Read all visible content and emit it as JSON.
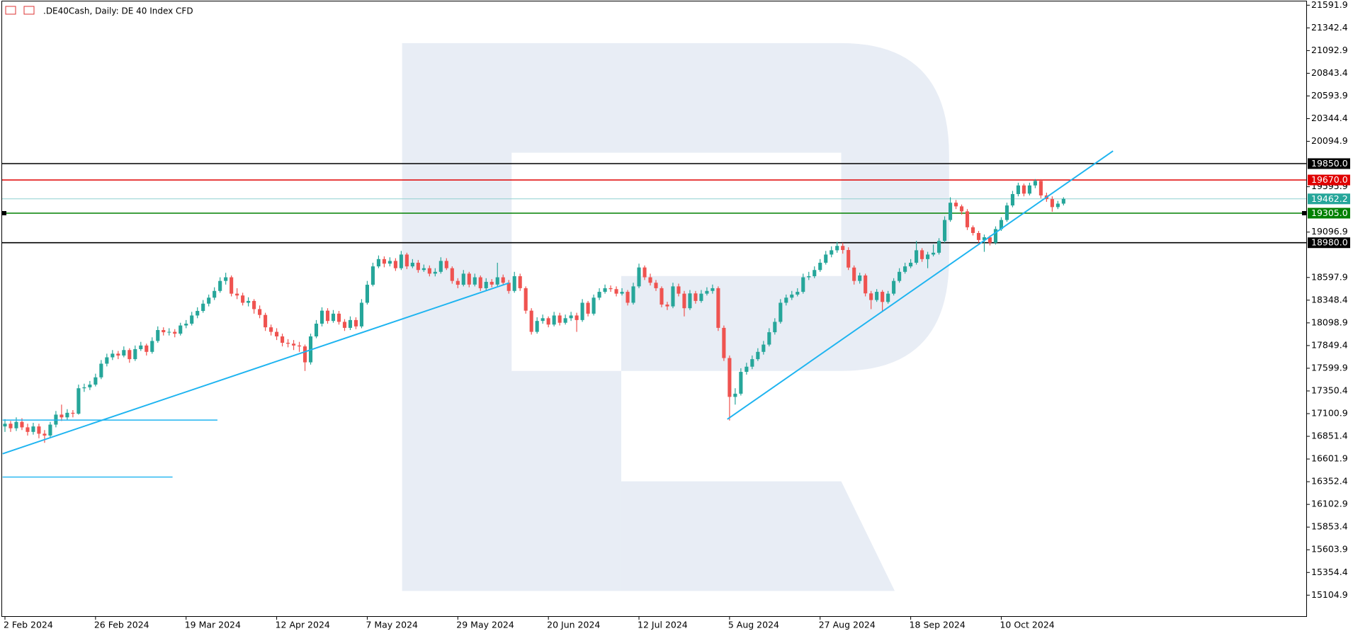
{
  "chart_data": {
    "type": "candlestick",
    "title": ".DE40Cash, Daily:  DE 40 Index CFD",
    "up_color": "#26a69a",
    "down_color": "#ef5350",
    "ylim": [
      14866,
      21649
    ],
    "xlim": [
      -0.5,
      230
    ],
    "yticks": [
      21591.9,
      21342.4,
      21092.9,
      20843.4,
      20593.9,
      20344.4,
      20094.9,
      19595.9,
      19096.9,
      18597.9,
      18348.4,
      18098.9,
      17849.4,
      17599.9,
      17350.4,
      17100.9,
      16851.4,
      16601.9,
      16352.4,
      16102.9,
      15853.4,
      15603.9,
      15354.4,
      15104.9
    ],
    "xticks": [
      {
        "value": 0,
        "label": "2 Feb 2024"
      },
      {
        "value": 16,
        "label": "26 Feb 2024"
      },
      {
        "value": 32,
        "label": "19 Mar 2024"
      },
      {
        "value": 48,
        "label": "12 Apr 2024"
      },
      {
        "value": 64,
        "label": "7 May 2024"
      },
      {
        "value": 80,
        "label": "29 May 2024"
      },
      {
        "value": 96,
        "label": "20 Jun 2024"
      },
      {
        "value": 112,
        "label": "12 Jul 2024"
      },
      {
        "value": 128,
        "label": "5 Aug 2024"
      },
      {
        "value": 144,
        "label": "27 Aug 2024"
      },
      {
        "value": 160,
        "label": "18 Sep 2024"
      },
      {
        "value": 176,
        "label": "10 Oct 2024"
      }
    ],
    "levels": [
      {
        "value": 19850,
        "label": "19850.0",
        "color": "#000000"
      },
      {
        "value": 19670,
        "label": "19670.0",
        "color": "#e00000"
      },
      {
        "value": 19462.2,
        "color": "#26a69a"
      },
      {
        "value": 19305,
        "label": "19305.0",
        "color": "#008000"
      },
      {
        "value": 18980,
        "label": "18980.0",
        "color": "#000000"
      }
    ],
    "candles": [
      [
        16960,
        17040,
        16900,
        16990
      ],
      [
        16990,
        17020,
        16900,
        16940
      ],
      [
        16940,
        17060,
        16910,
        17010
      ],
      [
        17010,
        17050,
        16920,
        16950
      ],
      [
        16950,
        16990,
        16860,
        16900
      ],
      [
        16900,
        17000,
        16870,
        16960
      ],
      [
        16960,
        16990,
        16830,
        16880
      ],
      [
        16880,
        16920,
        16780,
        16860
      ],
      [
        16860,
        17010,
        16840,
        16980
      ],
      [
        16980,
        17130,
        16950,
        17090
      ],
      [
        17090,
        17200,
        17020,
        17060
      ],
      [
        17060,
        17150,
        17030,
        17110
      ],
      [
        17110,
        17140,
        17060,
        17100
      ],
      [
        17100,
        17420,
        17090,
        17380
      ],
      [
        17380,
        17430,
        17340,
        17390
      ],
      [
        17390,
        17460,
        17360,
        17420
      ],
      [
        17420,
        17540,
        17400,
        17500
      ],
      [
        17500,
        17690,
        17480,
        17650
      ],
      [
        17650,
        17760,
        17620,
        17720
      ],
      [
        17720,
        17800,
        17690,
        17760
      ],
      [
        17760,
        17790,
        17700,
        17740
      ],
      [
        17740,
        17840,
        17720,
        17800
      ],
      [
        17800,
        17820,
        17660,
        17700
      ],
      [
        17700,
        17850,
        17680,
        17810
      ],
      [
        17810,
        17890,
        17790,
        17850
      ],
      [
        17850,
        17870,
        17740,
        17780
      ],
      [
        17780,
        17940,
        17760,
        17900
      ],
      [
        17900,
        18060,
        17880,
        18020
      ],
      [
        18020,
        18050,
        17960,
        17996
      ],
      [
        17996,
        18040,
        17960,
        18000
      ],
      [
        18000,
        18030,
        17940,
        17980
      ],
      [
        17980,
        18100,
        17960,
        18070
      ],
      [
        18070,
        18130,
        18040,
        18090
      ],
      [
        18090,
        18220,
        18070,
        18180
      ],
      [
        18180,
        18270,
        18150,
        18230
      ],
      [
        18230,
        18350,
        18210,
        18310
      ],
      [
        18310,
        18410,
        18280,
        18376
      ],
      [
        18376,
        18490,
        18350,
        18450
      ],
      [
        18450,
        18600,
        18430,
        18560
      ],
      [
        18560,
        18650,
        18520,
        18600
      ],
      [
        18600,
        18620,
        18390,
        18420
      ],
      [
        18420,
        18480,
        18360,
        18400
      ],
      [
        18400,
        18430,
        18290,
        18320
      ],
      [
        18320,
        18380,
        18280,
        18340
      ],
      [
        18340,
        18360,
        18200,
        18250
      ],
      [
        18250,
        18290,
        18150,
        18186
      ],
      [
        18186,
        18210,
        18010,
        18050
      ],
      [
        18050,
        18080,
        17960,
        18000
      ],
      [
        18000,
        18040,
        17910,
        17950
      ],
      [
        17950,
        17980,
        17840,
        17880
      ],
      [
        17880,
        17920,
        17830,
        17870
      ],
      [
        17870,
        17910,
        17800,
        17850
      ],
      [
        17850,
        17890,
        17780,
        17840
      ],
      [
        17840,
        17860,
        17570,
        17665
      ],
      [
        17665,
        17980,
        17640,
        17950
      ],
      [
        17950,
        18130,
        17930,
        18090
      ],
      [
        18090,
        18270,
        18060,
        18233
      ],
      [
        18233,
        18260,
        18090,
        18120
      ],
      [
        18120,
        18240,
        18100,
        18200
      ],
      [
        18200,
        18230,
        18080,
        18110
      ],
      [
        18110,
        18140,
        18010,
        18044
      ],
      [
        18044,
        18170,
        18020,
        18130
      ],
      [
        18130,
        18160,
        18030,
        18060
      ],
      [
        18060,
        18360,
        18040,
        18320
      ],
      [
        18320,
        18560,
        18300,
        18518
      ],
      [
        18518,
        18760,
        18500,
        18720
      ],
      [
        18720,
        18840,
        18700,
        18800
      ],
      [
        18800,
        18830,
        18710,
        18750
      ],
      [
        18750,
        18820,
        18720,
        18780
      ],
      [
        18780,
        18810,
        18670,
        18700
      ],
      [
        18700,
        18890,
        18680,
        18850
      ],
      [
        18850,
        18870,
        18690,
        18720
      ],
      [
        18720,
        18800,
        18700,
        18760
      ],
      [
        18760,
        18790,
        18650,
        18680
      ],
      [
        18680,
        18740,
        18660,
        18700
      ],
      [
        18700,
        18730,
        18610,
        18640
      ],
      [
        18640,
        18700,
        18610,
        18660
      ],
      [
        18660,
        18820,
        18640,
        18780
      ],
      [
        18780,
        18810,
        18680,
        18700
      ],
      [
        18700,
        18720,
        18530,
        18560
      ],
      [
        18560,
        18590,
        18480,
        18518
      ],
      [
        18518,
        18680,
        18500,
        18640
      ],
      [
        18640,
        18660,
        18490,
        18520
      ],
      [
        18520,
        18640,
        18500,
        18600
      ],
      [
        18600,
        18620,
        18450,
        18480
      ],
      [
        18480,
        18590,
        18460,
        18550
      ],
      [
        18550,
        18580,
        18490,
        18520
      ],
      [
        18520,
        18760,
        18500,
        18600
      ],
      [
        18600,
        18630,
        18510,
        18540
      ],
      [
        18540,
        18570,
        18420,
        18450
      ],
      [
        18450,
        18660,
        18430,
        18612
      ],
      [
        18612,
        18640,
        18450,
        18480
      ],
      [
        18480,
        18500,
        18200,
        18233
      ],
      [
        18233,
        18260,
        17970,
        18000
      ],
      [
        18000,
        18160,
        17980,
        18120
      ],
      [
        18120,
        18190,
        18090,
        18150
      ],
      [
        18150,
        18170,
        18050,
        18080
      ],
      [
        18080,
        18220,
        18060,
        18180
      ],
      [
        18180,
        18210,
        18070,
        18100
      ],
      [
        18100,
        18190,
        18080,
        18150
      ],
      [
        18150,
        18220,
        18120,
        18180
      ],
      [
        18180,
        18210,
        18000,
        18130
      ],
      [
        18130,
        18360,
        18110,
        18320
      ],
      [
        18320,
        18340,
        18170,
        18200
      ],
      [
        18200,
        18410,
        18180,
        18376
      ],
      [
        18376,
        18480,
        18350,
        18440
      ],
      [
        18440,
        18520,
        18420,
        18480
      ],
      [
        18480,
        18510,
        18440,
        18470
      ],
      [
        18470,
        18500,
        18390,
        18420
      ],
      [
        18420,
        18480,
        18400,
        18440
      ],
      [
        18440,
        18460,
        18290,
        18320
      ],
      [
        18320,
        18540,
        18300,
        18500
      ],
      [
        18500,
        18750,
        18480,
        18708
      ],
      [
        18708,
        18730,
        18570,
        18600
      ],
      [
        18600,
        18640,
        18510,
        18540
      ],
      [
        18540,
        18570,
        18450,
        18480
      ],
      [
        18480,
        18500,
        18270,
        18300
      ],
      [
        18300,
        18330,
        18240,
        18280
      ],
      [
        18280,
        18540,
        18260,
        18500
      ],
      [
        18500,
        18530,
        18390,
        18420
      ],
      [
        18420,
        18450,
        18170,
        18260
      ],
      [
        18260,
        18460,
        18240,
        18423
      ],
      [
        18423,
        18450,
        18310,
        18340
      ],
      [
        18340,
        18460,
        18320,
        18420
      ],
      [
        18420,
        18490,
        18400,
        18450
      ],
      [
        18450,
        18520,
        18420,
        18480
      ],
      [
        18480,
        18500,
        18010,
        18044
      ],
      [
        18044,
        18070,
        17680,
        17712
      ],
      [
        17712,
        17740,
        17025,
        17285
      ],
      [
        17285,
        17380,
        17200,
        17320
      ],
      [
        17320,
        17600,
        17300,
        17560
      ],
      [
        17560,
        17660,
        17530,
        17617
      ],
      [
        17617,
        17740,
        17590,
        17700
      ],
      [
        17700,
        17820,
        17680,
        17780
      ],
      [
        17780,
        17900,
        17750,
        17860
      ],
      [
        17860,
        18040,
        17840,
        17996
      ],
      [
        17996,
        18150,
        17970,
        18110
      ],
      [
        18110,
        18360,
        18090,
        18320
      ],
      [
        18320,
        18410,
        18290,
        18376
      ],
      [
        18376,
        18450,
        18350,
        18410
      ],
      [
        18410,
        18480,
        18390,
        18440
      ],
      [
        18440,
        18640,
        18420,
        18600
      ],
      [
        18600,
        18660,
        18570,
        18612
      ],
      [
        18612,
        18720,
        18590,
        18680
      ],
      [
        18680,
        18800,
        18660,
        18760
      ],
      [
        18760,
        18890,
        18740,
        18850
      ],
      [
        18850,
        18940,
        18820,
        18897
      ],
      [
        18897,
        18990,
        18870,
        18945
      ],
      [
        18945,
        18980,
        18860,
        18900
      ],
      [
        18900,
        18930,
        18680,
        18707
      ],
      [
        18707,
        18730,
        18520,
        18560
      ],
      [
        18560,
        18650,
        18530,
        18620
      ],
      [
        18620,
        18640,
        18390,
        18423
      ],
      [
        18423,
        18450,
        18250,
        18350
      ],
      [
        18350,
        18470,
        18330,
        18440
      ],
      [
        18440,
        18460,
        18220,
        18329
      ],
      [
        18329,
        18450,
        18310,
        18420
      ],
      [
        18420,
        18590,
        18400,
        18560
      ],
      [
        18560,
        18700,
        18540,
        18660
      ],
      [
        18660,
        18760,
        18640,
        18720
      ],
      [
        18720,
        18800,
        18700,
        18760
      ],
      [
        18760,
        19000,
        18740,
        18897
      ],
      [
        18897,
        18920,
        18770,
        18800
      ],
      [
        18800,
        18880,
        18700,
        18850
      ],
      [
        18850,
        18960,
        18830,
        18870
      ],
      [
        18870,
        19030,
        18850,
        19000
      ],
      [
        19000,
        19270,
        18980,
        19230
      ],
      [
        19230,
        19480,
        19210,
        19420
      ],
      [
        19420,
        19450,
        19350,
        19380
      ],
      [
        19380,
        19400,
        19290,
        19325
      ],
      [
        19325,
        19350,
        19120,
        19150
      ],
      [
        19150,
        19170,
        19060,
        19087
      ],
      [
        19087,
        19110,
        18980,
        19010
      ],
      [
        19010,
        19070,
        18880,
        19040
      ],
      [
        19040,
        19060,
        18950,
        18980
      ],
      [
        18980,
        19160,
        18960,
        19130
      ],
      [
        19130,
        19260,
        19110,
        19230
      ],
      [
        19230,
        19420,
        19210,
        19390
      ],
      [
        19390,
        19550,
        19370,
        19515
      ],
      [
        19515,
        19640,
        19490,
        19610
      ],
      [
        19610,
        19630,
        19490,
        19520
      ],
      [
        19520,
        19640,
        19500,
        19610
      ],
      [
        19610,
        19680,
        19580,
        19660
      ],
      [
        19660,
        19680,
        19470,
        19500
      ],
      [
        19500,
        19530,
        19430,
        19460
      ],
      [
        19460,
        19490,
        19320,
        19372
      ],
      [
        19372,
        19440,
        19350,
        19410
      ],
      [
        19410,
        19480,
        19390,
        19462.2
      ]
    ]
  }
}
